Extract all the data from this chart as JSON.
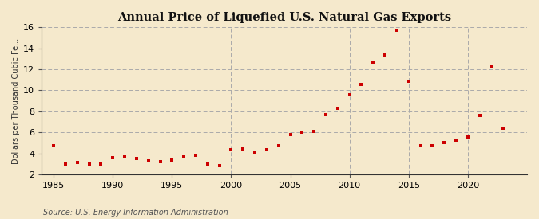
{
  "title": "Annual Price of Liquefied U.S. Natural Gas Exports",
  "ylabel": "Dollars per Thousand Cubic Fe...",
  "source": "Source: U.S. Energy Information Administration",
  "background_color": "#f5e9cc",
  "plot_bg_color": "#f5e9cc",
  "marker_color": "#cc0000",
  "years": [
    1985,
    1986,
    1987,
    1988,
    1989,
    1990,
    1991,
    1992,
    1993,
    1994,
    1995,
    1996,
    1997,
    1998,
    1999,
    2000,
    2001,
    2002,
    2003,
    2004,
    2005,
    2006,
    2007,
    2008,
    2009,
    2010,
    2011,
    2012,
    2013,
    2014,
    2015,
    2016,
    2017,
    2018,
    2019,
    2020,
    2021,
    2022,
    2023
  ],
  "values": [
    4.75,
    2.95,
    3.1,
    2.95,
    2.95,
    3.6,
    3.7,
    3.55,
    3.25,
    3.2,
    3.35,
    3.7,
    3.85,
    3.0,
    2.85,
    4.35,
    4.4,
    4.1,
    4.35,
    4.75,
    5.8,
    6.0,
    6.1,
    7.7,
    8.3,
    9.6,
    10.6,
    12.7,
    13.4,
    15.7,
    10.9,
    4.75,
    4.7,
    5.0,
    5.25,
    5.55,
    7.6,
    12.2,
    6.4
  ],
  "xlim": [
    1984.0,
    2025.0
  ],
  "ylim": [
    2,
    16
  ],
  "yticks": [
    2,
    4,
    6,
    8,
    10,
    12,
    14,
    16
  ],
  "xticks": [
    1985,
    1990,
    1995,
    2000,
    2005,
    2010,
    2015,
    2020
  ],
  "title_fontsize": 10.5,
  "ylabel_fontsize": 7,
  "tick_fontsize": 8,
  "source_fontsize": 7
}
